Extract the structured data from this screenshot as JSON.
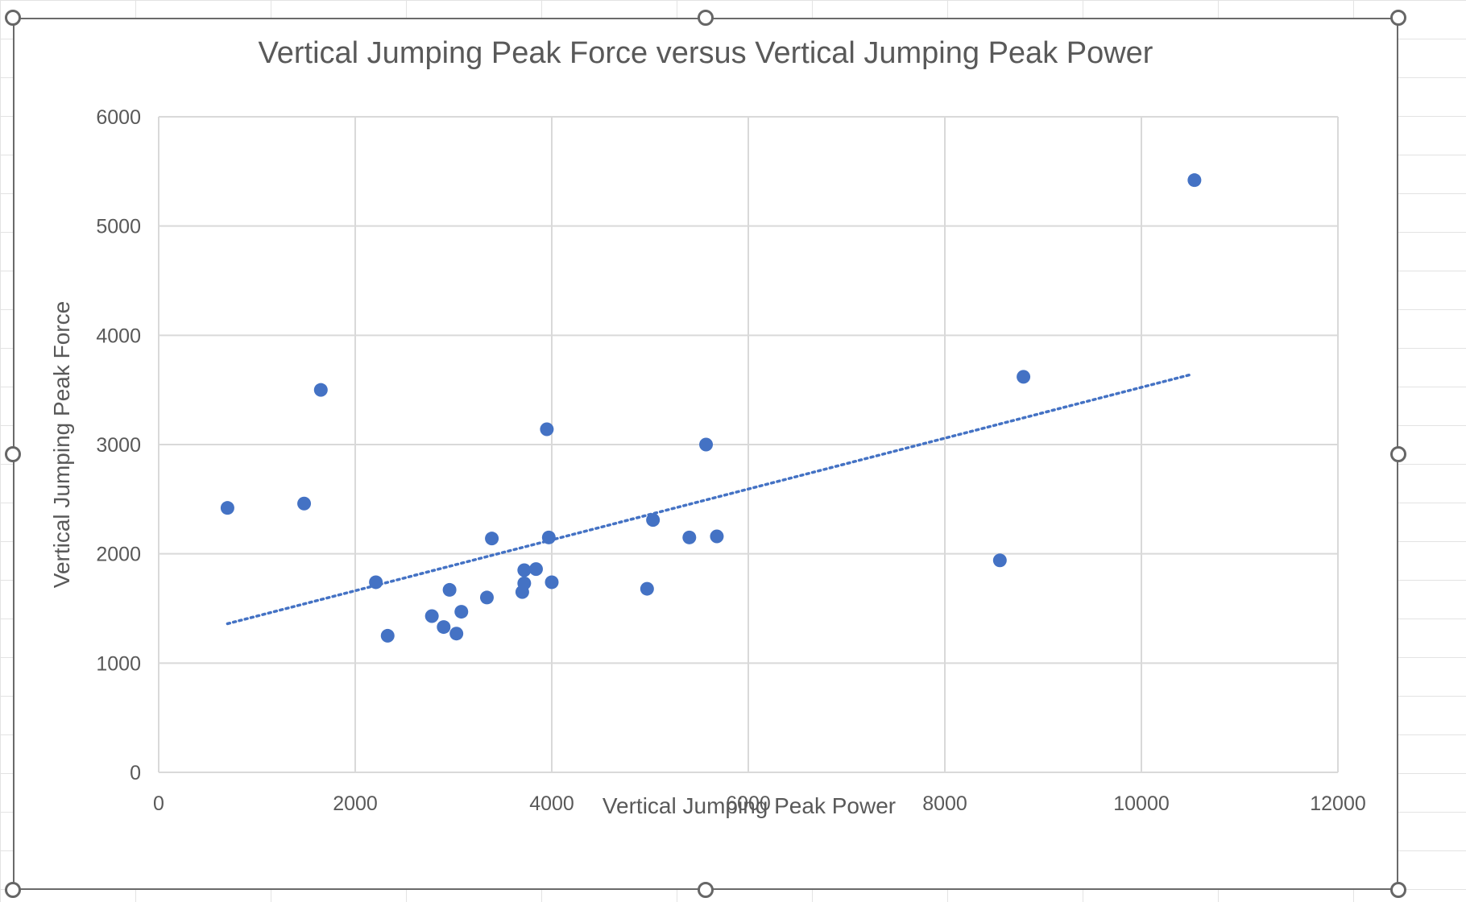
{
  "chart_data": {
    "type": "scatter",
    "title": "Vertical Jumping Peak Force versus Vertical Jumping Peak Power",
    "xlabel": "Vertical Jumping Peak Power",
    "ylabel": "Vertical Jumping Peak Force",
    "xlim": [
      0,
      12000
    ],
    "ylim": [
      0,
      6000
    ],
    "x_ticks": [
      0,
      2000,
      4000,
      6000,
      8000,
      10000,
      12000
    ],
    "y_ticks": [
      0,
      1000,
      2000,
      3000,
      4000,
      5000,
      6000
    ],
    "grid": true,
    "marker_color": "#4472C4",
    "trendline": {
      "style": "dotted",
      "color": "#4472C4",
      "start": [
        700,
        1360
      ],
      "end": [
        10500,
        3640
      ]
    },
    "points": [
      [
        700,
        2420
      ],
      [
        1480,
        2460
      ],
      [
        1650,
        3500
      ],
      [
        2210,
        1740
      ],
      [
        2330,
        1250
      ],
      [
        2780,
        1430
      ],
      [
        2900,
        1330
      ],
      [
        2960,
        1670
      ],
      [
        3030,
        1270
      ],
      [
        3080,
        1470
      ],
      [
        3340,
        1600
      ],
      [
        3390,
        2140
      ],
      [
        3700,
        1650
      ],
      [
        3720,
        1730
      ],
      [
        3720,
        1850
      ],
      [
        3840,
        1860
      ],
      [
        3950,
        3140
      ],
      [
        3970,
        2150
      ],
      [
        4000,
        1740
      ],
      [
        4970,
        1680
      ],
      [
        5030,
        2310
      ],
      [
        5400,
        2150
      ],
      [
        5570,
        3000
      ],
      [
        5680,
        2160
      ],
      [
        8560,
        1940
      ],
      [
        8800,
        3620
      ],
      [
        10540,
        5420
      ]
    ]
  }
}
